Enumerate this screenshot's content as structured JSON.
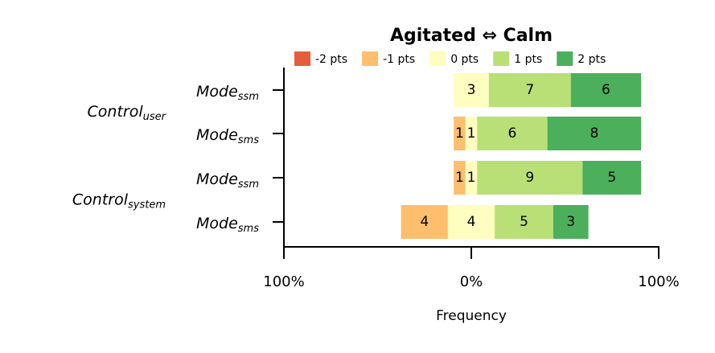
{
  "chart_data": {
    "type": "diverging-bar",
    "title": "Agitated ⇔ Calm",
    "x_label": "Frequency",
    "categories": [
      {
        "text": "Mode",
        "sub": "ssm"
      },
      {
        "text": "Mode",
        "sub": "sms"
      },
      {
        "text": "Mode",
        "sub": "ssm"
      },
      {
        "text": "Mode",
        "sub": "sms"
      }
    ],
    "groups": [
      {
        "text": "Control",
        "sub": "user",
        "rows": [
          0,
          1
        ]
      },
      {
        "text": "Control",
        "sub": "system",
        "rows": [
          2,
          3
        ]
      }
    ],
    "series": [
      {
        "name": "-2 pts",
        "color": "#e55d3b",
        "side": -2,
        "values": [
          0,
          0,
          0,
          0
        ]
      },
      {
        "name": "-1 pts",
        "color": "#fdbe6e",
        "side": -1,
        "values": [
          0,
          1,
          1,
          4
        ]
      },
      {
        "name": "0 pts",
        "color": "#fefec0",
        "side": 0,
        "values": [
          3,
          1,
          1,
          4
        ]
      },
      {
        "name": "1 pts",
        "color": "#b8e076",
        "side": 1,
        "values": [
          7,
          6,
          9,
          5
        ]
      },
      {
        "name": "2 pts",
        "color": "#4caf5b",
        "side": 2,
        "values": [
          6,
          8,
          5,
          3
        ]
      }
    ],
    "xlim": [
      -100,
      100
    ],
    "xticks": [
      {
        "value": -100,
        "label": "100%"
      },
      {
        "value": 0,
        "label": "0%"
      },
      {
        "value": 100,
        "label": "100%"
      }
    ],
    "legend": "top"
  }
}
